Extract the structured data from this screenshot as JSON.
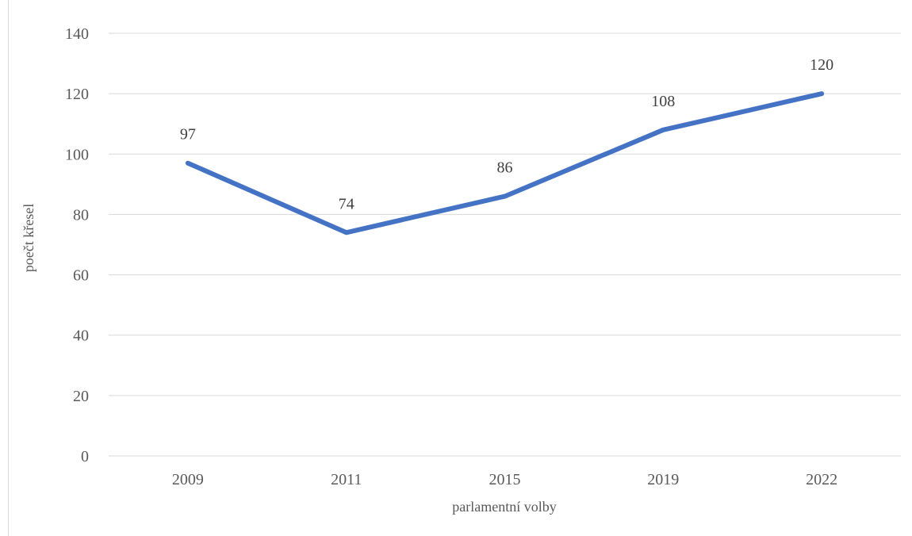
{
  "chart_data": {
    "type": "line",
    "title": "",
    "xlabel": "parlamentní  volby",
    "ylabel": "poečt křesel",
    "categories": [
      "2009",
      "2011",
      "2015",
      "2019",
      "2022"
    ],
    "series": [
      {
        "values": [
          97,
          74,
          86,
          108,
          120
        ],
        "color": "#4472c4"
      }
    ],
    "ylim": [
      0,
      140
    ],
    "yticks": [
      "0",
      "20",
      "40",
      "60",
      "80",
      "100",
      "120",
      "140"
    ],
    "data_labels": [
      "97",
      "74",
      "86",
      "108",
      "120"
    ],
    "grid": true,
    "gridColor": "#d9d9d9",
    "legend": "none"
  }
}
